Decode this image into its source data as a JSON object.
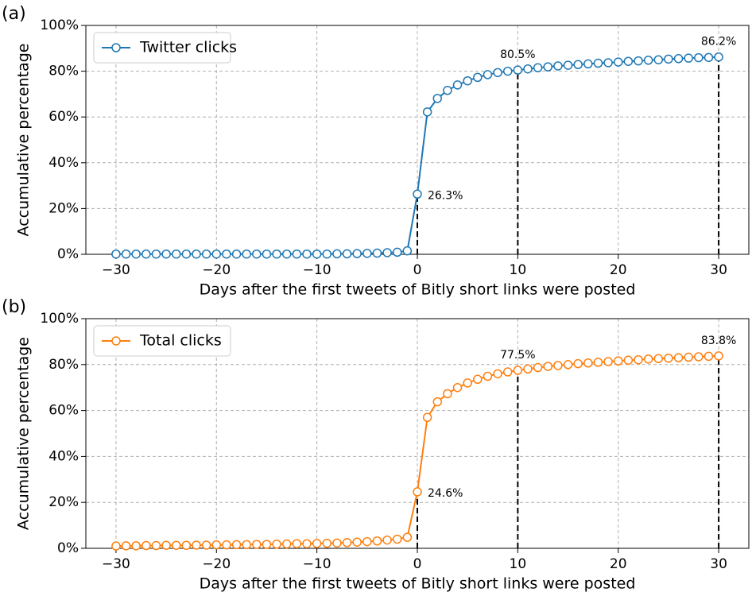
{
  "chart_data": [
    {
      "type": "line",
      "panel_label": "(a)",
      "x_label": "Days after the first tweets of Bitly short links were posted",
      "y_label": "Accumulative percentage",
      "x": [
        -30,
        -29,
        -28,
        -27,
        -26,
        -25,
        -24,
        -23,
        -22,
        -21,
        -20,
        -19,
        -18,
        -17,
        -16,
        -15,
        -14,
        -13,
        -12,
        -11,
        -10,
        -9,
        -8,
        -7,
        -6,
        -5,
        -4,
        -3,
        -2,
        -1,
        0,
        1,
        2,
        3,
        4,
        5,
        6,
        7,
        8,
        9,
        10,
        11,
        12,
        13,
        14,
        15,
        16,
        17,
        18,
        19,
        20,
        21,
        22,
        23,
        24,
        25,
        26,
        27,
        28,
        29,
        30
      ],
      "series": [
        {
          "name": "Twitter clicks",
          "color": "#1f77b4",
          "values": [
            0.1,
            0.1,
            0.1,
            0.1,
            0.1,
            0.1,
            0.1,
            0.1,
            0.1,
            0.1,
            0.1,
            0.1,
            0.1,
            0.1,
            0.1,
            0.1,
            0.1,
            0.1,
            0.1,
            0.1,
            0.1,
            0.1,
            0.2,
            0.2,
            0.3,
            0.4,
            0.5,
            0.7,
            0.9,
            1.5,
            26.3,
            62.2,
            68.1,
            71.6,
            74.0,
            75.8,
            77.3,
            78.5,
            79.4,
            80.0,
            80.5,
            81.0,
            81.5,
            81.9,
            82.3,
            82.6,
            82.9,
            83.2,
            83.5,
            83.7,
            84.0,
            84.3,
            84.5,
            84.8,
            85.0,
            85.3,
            85.5,
            85.7,
            85.9,
            86.0,
            86.2
          ]
        }
      ],
      "annotations": [
        {
          "x": 0,
          "label": "26.3%"
        },
        {
          "x": 10,
          "label": "80.5%"
        },
        {
          "x": 30,
          "label": "86.2%"
        }
      ],
      "xlim": [
        -33,
        33
      ],
      "xticks": [
        {
          "value": -30,
          "label": "−30"
        },
        {
          "value": -20,
          "label": "−20"
        },
        {
          "value": -10,
          "label": "−10"
        },
        0,
        10,
        20,
        30
      ],
      "ylim": [
        0,
        100
      ],
      "yticks": [
        {
          "value": 0,
          "label": "0%"
        },
        {
          "value": 20,
          "label": "20%"
        },
        {
          "value": 40,
          "label": "40%"
        },
        {
          "value": 60,
          "label": "60%"
        },
        {
          "value": 80,
          "label": "80%"
        },
        {
          "value": 100,
          "label": "100%"
        }
      ],
      "grid": true,
      "legend": "upper left"
    },
    {
      "type": "line",
      "panel_label": "(b)",
      "x_label": "Days after the first tweets of Bitly short links were posted",
      "y_label": "Accumulative percentage",
      "x": [
        -30,
        -29,
        -28,
        -27,
        -26,
        -25,
        -24,
        -23,
        -22,
        -21,
        -20,
        -19,
        -18,
        -17,
        -16,
        -15,
        -14,
        -13,
        -12,
        -11,
        -10,
        -9,
        -8,
        -7,
        -6,
        -5,
        -4,
        -3,
        -2,
        -1,
        0,
        1,
        2,
        3,
        4,
        5,
        6,
        7,
        8,
        9,
        10,
        11,
        12,
        13,
        14,
        15,
        16,
        17,
        18,
        19,
        20,
        21,
        22,
        23,
        24,
        25,
        26,
        27,
        28,
        29,
        30
      ],
      "series": [
        {
          "name": "Total clicks",
          "color": "#ff7f0e",
          "values": [
            1.0,
            1.1,
            1.1,
            1.2,
            1.2,
            1.3,
            1.3,
            1.3,
            1.4,
            1.4,
            1.5,
            1.5,
            1.6,
            1.6,
            1.7,
            1.7,
            1.8,
            1.9,
            2.0,
            2.0,
            2.1,
            2.2,
            2.3,
            2.5,
            2.7,
            2.9,
            3.2,
            3.6,
            4.0,
            4.8,
            24.6,
            57.0,
            63.8,
            67.3,
            70.0,
            72.0,
            73.6,
            74.9,
            76.0,
            76.8,
            77.5,
            78.1,
            78.7,
            79.2,
            79.6,
            80.0,
            80.4,
            80.7,
            81.0,
            81.3,
            81.6,
            81.9,
            82.1,
            82.4,
            82.6,
            82.8,
            83.0,
            83.2,
            83.4,
            83.6,
            83.8
          ]
        }
      ],
      "annotations": [
        {
          "x": 0,
          "label": "24.6%"
        },
        {
          "x": 10,
          "label": "77.5%"
        },
        {
          "x": 30,
          "label": "83.8%"
        }
      ],
      "xlim": [
        -33,
        33
      ],
      "xticks": [
        {
          "value": -30,
          "label": "−30"
        },
        {
          "value": -20,
          "label": "−20"
        },
        {
          "value": -10,
          "label": "−10"
        },
        0,
        10,
        20,
        30
      ],
      "ylim": [
        0,
        100
      ],
      "yticks": [
        {
          "value": 0,
          "label": "0%"
        },
        {
          "value": 20,
          "label": "20%"
        },
        {
          "value": 40,
          "label": "40%"
        },
        {
          "value": 60,
          "label": "60%"
        },
        {
          "value": 80,
          "label": "80%"
        },
        {
          "value": 100,
          "label": "100%"
        }
      ],
      "grid": true,
      "legend": "upper left"
    }
  ]
}
